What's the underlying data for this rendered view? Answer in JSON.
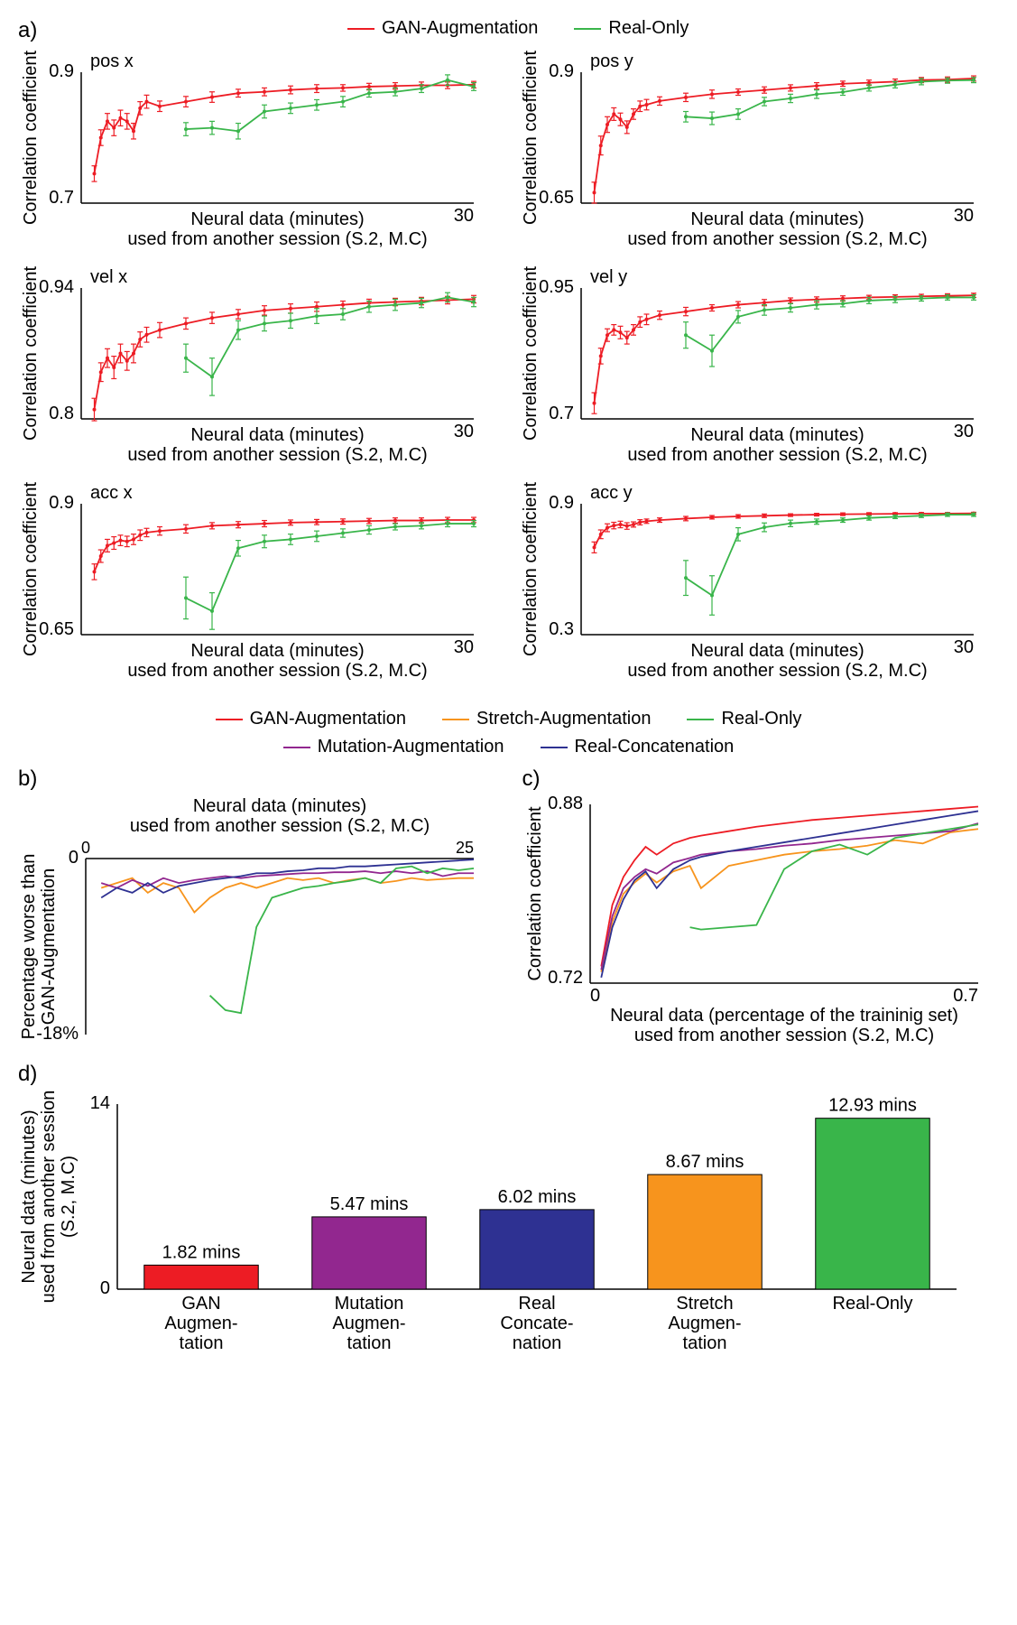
{
  "colors": {
    "gan": "#ed1c24",
    "real_only": "#39b54a",
    "stretch": "#f7941d",
    "mutation": "#92278f",
    "real_concat": "#2e3192",
    "black": "#000000",
    "grid": "#000000",
    "bg": "#ffffff"
  },
  "legend_a": {
    "gan": "GAN-Augmentation",
    "real_only": "Real-Only"
  },
  "legend_b": {
    "gan": "GAN-Augmentation",
    "stretch": "Stretch-Augmentation",
    "real_only": "Real-Only",
    "mutation": "Mutation-Augmentation",
    "real_concat": "Real-Concatenation"
  },
  "panel_a": {
    "label": "a)",
    "xlabel": "Neural data (minutes)",
    "xsub": "used from another session (S.2, M.C)",
    "ylabel": "Correlation coefficient",
    "xlim": [
      0,
      30
    ],
    "xtick_end": "30",
    "subplots": [
      {
        "title": "pos x",
        "ylim": [
          0.7,
          0.9
        ],
        "yticks": [
          "0.7",
          "0.9"
        ],
        "gan_x": [
          1,
          1.5,
          2,
          2.5,
          3,
          3.5,
          4,
          4.5,
          5,
          6,
          8,
          10,
          12,
          14,
          16,
          18,
          20,
          22,
          24,
          26,
          28,
          30
        ],
        "gan_y": [
          0.745,
          0.8,
          0.825,
          0.815,
          0.83,
          0.825,
          0.81,
          0.845,
          0.855,
          0.848,
          0.855,
          0.862,
          0.868,
          0.87,
          0.873,
          0.875,
          0.876,
          0.878,
          0.879,
          0.88,
          0.88,
          0.881
        ],
        "gan_err": [
          0.012,
          0.012,
          0.012,
          0.012,
          0.012,
          0.012,
          0.012,
          0.01,
          0.01,
          0.008,
          0.008,
          0.008,
          0.006,
          0.006,
          0.006,
          0.006,
          0.005,
          0.005,
          0.005,
          0.005,
          0.005,
          0.005
        ],
        "real_x": [
          8,
          10,
          12,
          14,
          16,
          18,
          20,
          22,
          24,
          26,
          28,
          30
        ],
        "real_y": [
          0.813,
          0.815,
          0.81,
          0.84,
          0.845,
          0.85,
          0.855,
          0.868,
          0.87,
          0.875,
          0.888,
          0.878
        ],
        "real_err": [
          0.01,
          0.01,
          0.012,
          0.01,
          0.008,
          0.008,
          0.008,
          0.006,
          0.006,
          0.006,
          0.008,
          0.006
        ]
      },
      {
        "title": "pos y",
        "ylim": [
          0.65,
          0.9
        ],
        "yticks": [
          "0.65",
          "0.9"
        ],
        "gan_x": [
          1,
          1.5,
          2,
          2.5,
          3,
          3.5,
          4,
          4.5,
          5,
          6,
          8,
          10,
          12,
          14,
          16,
          18,
          20,
          22,
          24,
          26,
          28,
          30
        ],
        "gan_y": [
          0.67,
          0.76,
          0.8,
          0.82,
          0.81,
          0.795,
          0.82,
          0.835,
          0.838,
          0.845,
          0.852,
          0.858,
          0.862,
          0.866,
          0.87,
          0.874,
          0.878,
          0.88,
          0.882,
          0.885,
          0.886,
          0.888
        ],
        "gan_err": [
          0.02,
          0.018,
          0.015,
          0.012,
          0.012,
          0.012,
          0.01,
          0.01,
          0.01,
          0.008,
          0.008,
          0.008,
          0.006,
          0.006,
          0.006,
          0.006,
          0.005,
          0.005,
          0.005,
          0.005,
          0.005,
          0.005
        ],
        "real_x": [
          8,
          10,
          12,
          14,
          16,
          18,
          20,
          22,
          24,
          26,
          28,
          30
        ],
        "real_y": [
          0.815,
          0.812,
          0.82,
          0.844,
          0.85,
          0.858,
          0.862,
          0.87,
          0.876,
          0.882,
          0.884,
          0.885
        ],
        "real_err": [
          0.01,
          0.012,
          0.01,
          0.008,
          0.008,
          0.008,
          0.006,
          0.006,
          0.006,
          0.006,
          0.005,
          0.005
        ]
      },
      {
        "title": "vel x",
        "ylim": [
          0.8,
          0.94
        ],
        "yticks": [
          "0.8",
          "0.94"
        ],
        "gan_x": [
          1,
          1.5,
          2,
          2.5,
          3,
          3.5,
          4,
          4.5,
          5,
          6,
          8,
          10,
          12,
          14,
          16,
          18,
          20,
          22,
          24,
          26,
          28,
          30
        ],
        "gan_y": [
          0.81,
          0.85,
          0.865,
          0.855,
          0.87,
          0.862,
          0.87,
          0.885,
          0.89,
          0.895,
          0.902,
          0.908,
          0.912,
          0.916,
          0.918,
          0.92,
          0.922,
          0.924,
          0.925,
          0.926,
          0.927,
          0.928
        ],
        "gan_err": [
          0.012,
          0.01,
          0.01,
          0.012,
          0.01,
          0.01,
          0.01,
          0.008,
          0.008,
          0.008,
          0.006,
          0.006,
          0.005,
          0.005,
          0.005,
          0.005,
          0.004,
          0.004,
          0.004,
          0.004,
          0.004,
          0.004
        ],
        "real_x": [
          8,
          10,
          12,
          14,
          16,
          18,
          20,
          22,
          24,
          26,
          28,
          30
        ],
        "real_y": [
          0.865,
          0.845,
          0.895,
          0.902,
          0.905,
          0.91,
          0.912,
          0.92,
          0.922,
          0.924,
          0.93,
          0.925
        ],
        "real_err": [
          0.015,
          0.02,
          0.01,
          0.008,
          0.008,
          0.008,
          0.006,
          0.006,
          0.006,
          0.005,
          0.005,
          0.005
        ]
      },
      {
        "title": "vel y",
        "ylim": [
          0.7,
          0.95
        ],
        "yticks": [
          "0.7",
          "0.95"
        ],
        "gan_x": [
          1,
          1.5,
          2,
          2.5,
          3,
          3.5,
          4,
          4.5,
          5,
          6,
          8,
          10,
          12,
          14,
          16,
          18,
          20,
          22,
          24,
          26,
          28,
          30
        ],
        "gan_y": [
          0.73,
          0.82,
          0.86,
          0.87,
          0.865,
          0.855,
          0.87,
          0.885,
          0.89,
          0.898,
          0.905,
          0.912,
          0.918,
          0.922,
          0.926,
          0.928,
          0.93,
          0.932,
          0.933,
          0.934,
          0.935,
          0.936
        ],
        "gan_err": [
          0.02,
          0.015,
          0.012,
          0.01,
          0.012,
          0.012,
          0.01,
          0.01,
          0.01,
          0.008,
          0.008,
          0.006,
          0.006,
          0.006,
          0.005,
          0.005,
          0.005,
          0.004,
          0.004,
          0.004,
          0.004,
          0.004
        ],
        "real_x": [
          8,
          10,
          12,
          14,
          16,
          18,
          20,
          22,
          24,
          26,
          28,
          30
        ],
        "real_y": [
          0.86,
          0.83,
          0.895,
          0.908,
          0.912,
          0.918,
          0.92,
          0.926,
          0.928,
          0.93,
          0.932,
          0.932
        ],
        "real_err": [
          0.025,
          0.03,
          0.012,
          0.01,
          0.008,
          0.008,
          0.006,
          0.006,
          0.006,
          0.005,
          0.005,
          0.005
        ]
      },
      {
        "title": "acc x",
        "ylim": [
          0.65,
          0.9
        ],
        "yticks": [
          "0.65",
          "0.9"
        ],
        "gan_x": [
          1,
          1.5,
          2,
          2.5,
          3,
          3.5,
          4,
          4.5,
          5,
          6,
          8,
          10,
          12,
          14,
          16,
          18,
          20,
          22,
          24,
          26,
          28,
          30
        ],
        "gan_y": [
          0.77,
          0.8,
          0.82,
          0.825,
          0.83,
          0.828,
          0.832,
          0.84,
          0.845,
          0.848,
          0.852,
          0.858,
          0.86,
          0.862,
          0.864,
          0.865,
          0.866,
          0.867,
          0.868,
          0.868,
          0.869,
          0.869
        ],
        "gan_err": [
          0.015,
          0.012,
          0.012,
          0.012,
          0.01,
          0.01,
          0.01,
          0.01,
          0.008,
          0.008,
          0.008,
          0.006,
          0.006,
          0.006,
          0.005,
          0.005,
          0.005,
          0.005,
          0.005,
          0.005,
          0.005,
          0.005
        ],
        "real_x": [
          8,
          10,
          12,
          14,
          16,
          18,
          20,
          22,
          24,
          26,
          28,
          30
        ],
        "real_y": [
          0.72,
          0.695,
          0.815,
          0.828,
          0.832,
          0.838,
          0.844,
          0.85,
          0.856,
          0.858,
          0.862,
          0.862
        ],
        "real_err": [
          0.04,
          0.035,
          0.015,
          0.012,
          0.01,
          0.01,
          0.008,
          0.008,
          0.006,
          0.006,
          0.006,
          0.006
        ]
      },
      {
        "title": "acc y",
        "ylim": [
          0.3,
          0.9
        ],
        "yticks": [
          "0.3",
          "0.9"
        ],
        "gan_x": [
          1,
          1.5,
          2,
          2.5,
          3,
          3.5,
          4,
          4.5,
          5,
          6,
          8,
          10,
          12,
          14,
          16,
          18,
          20,
          22,
          24,
          26,
          28,
          30
        ],
        "gan_y": [
          0.7,
          0.76,
          0.79,
          0.8,
          0.805,
          0.798,
          0.805,
          0.815,
          0.82,
          0.825,
          0.832,
          0.838,
          0.842,
          0.845,
          0.848,
          0.85,
          0.852,
          0.853,
          0.854,
          0.855,
          0.855,
          0.856
        ],
        "gan_err": [
          0.025,
          0.02,
          0.018,
          0.015,
          0.015,
          0.015,
          0.012,
          0.012,
          0.01,
          0.01,
          0.01,
          0.008,
          0.008,
          0.008,
          0.006,
          0.006,
          0.006,
          0.006,
          0.005,
          0.005,
          0.005,
          0.005
        ],
        "real_x": [
          8,
          10,
          12,
          14,
          16,
          18,
          20,
          22,
          24,
          26,
          28,
          30
        ],
        "real_y": [
          0.56,
          0.48,
          0.76,
          0.792,
          0.81,
          0.818,
          0.825,
          0.835,
          0.84,
          0.845,
          0.85,
          0.85
        ],
        "real_err": [
          0.08,
          0.09,
          0.03,
          0.02,
          0.015,
          0.012,
          0.01,
          0.01,
          0.008,
          0.008,
          0.008,
          0.008
        ]
      }
    ]
  },
  "panel_b": {
    "label": "b)",
    "xlabel": "Neural data (minutes)",
    "xsub": "used from another session (S.2, M.C)",
    "ylabel": "Percentage worse than\nGAN-Augmentation",
    "xlim": [
      0,
      25
    ],
    "ylim": [
      -18,
      0
    ],
    "yticks": [
      "-18%",
      "0"
    ],
    "xtick_end": "25",
    "x": [
      1,
      2,
      3,
      4,
      5,
      6,
      7,
      8,
      9,
      10,
      11,
      12,
      13,
      14,
      15,
      16,
      17,
      18,
      19,
      20,
      21,
      22,
      23,
      24,
      25
    ],
    "series": {
      "stretch": [
        -3,
        -2.5,
        -2,
        -3.5,
        -2.5,
        -3,
        -5.5,
        -4,
        -3,
        -2.5,
        -3,
        -2.5,
        -2,
        -2.2,
        -2,
        -2.5,
        -2.2,
        -2,
        -2.5,
        -2.3,
        -2,
        -2.2,
        -2.1,
        -2,
        -2
      ],
      "mutation": [
        -2.5,
        -3,
        -2.2,
        -2.8,
        -2,
        -2.5,
        -2.2,
        -2,
        -1.8,
        -2,
        -1.8,
        -1.7,
        -1.6,
        -1.5,
        -1.5,
        -1.4,
        -1.4,
        -1.3,
        -1.5,
        -1.3,
        -1.5,
        -1.3,
        -1.8,
        -1.5,
        -1.5
      ],
      "real_concat": [
        -4,
        -3,
        -3.5,
        -2.5,
        -3.5,
        -2.8,
        -2.5,
        -2.2,
        -2,
        -1.8,
        -1.5,
        -1.5,
        -1.3,
        -1.2,
        -1,
        -1,
        -0.8,
        -0.8,
        -0.7,
        -0.6,
        -0.5,
        -0.4,
        -0.3,
        -0.2,
        -0.1
      ],
      "real_only": [
        null,
        null,
        null,
        null,
        null,
        null,
        null,
        -14,
        -15.5,
        -15.8,
        -7,
        -4,
        -3.5,
        -3,
        -2.8,
        -2.5,
        -2.3,
        -2,
        -2.5,
        -1,
        -0.8,
        -1.5,
        -1,
        -1.2,
        -1
      ]
    }
  },
  "panel_c": {
    "label": "c)",
    "xlabel": "Neural data (percentage of the traininig set)",
    "xsub": "used from another session (S.2, M.C)",
    "ylabel": "Correlation coefficient",
    "xlim": [
      0,
      0.7
    ],
    "ylim": [
      0.72,
      0.88
    ],
    "yticks": [
      "0.72",
      "0.88"
    ],
    "xticks": [
      "0",
      "0.7"
    ],
    "x": [
      0.02,
      0.04,
      0.06,
      0.08,
      0.1,
      0.12,
      0.15,
      0.18,
      0.2,
      0.25,
      0.3,
      0.35,
      0.4,
      0.45,
      0.5,
      0.55,
      0.6,
      0.65,
      0.7
    ],
    "series": {
      "gan": [
        0.735,
        0.79,
        0.815,
        0.83,
        0.842,
        0.835,
        0.845,
        0.85,
        0.852,
        0.856,
        0.86,
        0.863,
        0.866,
        0.868,
        0.87,
        0.872,
        0.874,
        0.876,
        0.878
      ],
      "stretch": [
        0.73,
        0.775,
        0.8,
        0.81,
        0.818,
        0.81,
        0.82,
        0.825,
        0.805,
        0.825,
        0.83,
        0.835,
        0.838,
        0.84,
        0.843,
        0.848,
        0.845,
        0.855,
        0.858
      ],
      "mutation": [
        0.732,
        0.78,
        0.805,
        0.815,
        0.822,
        0.818,
        0.828,
        0.832,
        0.835,
        0.838,
        0.84,
        0.843,
        0.845,
        0.848,
        0.85,
        0.852,
        0.854,
        0.856,
        0.863
      ],
      "real_concat": [
        0.725,
        0.77,
        0.795,
        0.812,
        0.82,
        0.805,
        0.822,
        0.83,
        0.833,
        0.838,
        0.842,
        0.846,
        0.85,
        0.854,
        0.858,
        0.862,
        0.866,
        0.87,
        0.874
      ],
      "real_only": [
        null,
        null,
        null,
        null,
        null,
        null,
        null,
        0.77,
        0.768,
        0.77,
        0.772,
        0.822,
        0.838,
        0.844,
        0.835,
        0.85,
        0.854,
        0.858,
        0.862
      ]
    }
  },
  "panel_d": {
    "label": "d)",
    "ylabel": "Neural data (minutes)\nused from another session\n(S.2, M.C)",
    "ylim": [
      0,
      14
    ],
    "ytick": "14",
    "ytick0": "0",
    "bars": [
      {
        "label_l1": "GAN",
        "label_l2": "Augmen-",
        "label_l3": "tation",
        "value": 1.82,
        "text": "1.82 mins",
        "color": "#ed1c24"
      },
      {
        "label_l1": "Mutation",
        "label_l2": "Augmen-",
        "label_l3": "tation",
        "value": 5.47,
        "text": "5.47 mins",
        "color": "#92278f"
      },
      {
        "label_l1": "Real",
        "label_l2": "Concate-",
        "label_l3": "nation",
        "value": 6.02,
        "text": "6.02 mins",
        "color": "#2e3192"
      },
      {
        "label_l1": "Stretch",
        "label_l2": "Augmen-",
        "label_l3": "tation",
        "value": 8.67,
        "text": "8.67 mins",
        "color": "#f7941d"
      },
      {
        "label_l1": "Real-Only",
        "label_l2": "",
        "label_l3": "",
        "value": 12.93,
        "text": "12.93 mins",
        "color": "#39b54a"
      }
    ]
  },
  "fontsize": {
    "title": 20,
    "axis_label": 20,
    "tick": 18,
    "legend": 20,
    "panel_label": 24,
    "bar_text": 20
  }
}
